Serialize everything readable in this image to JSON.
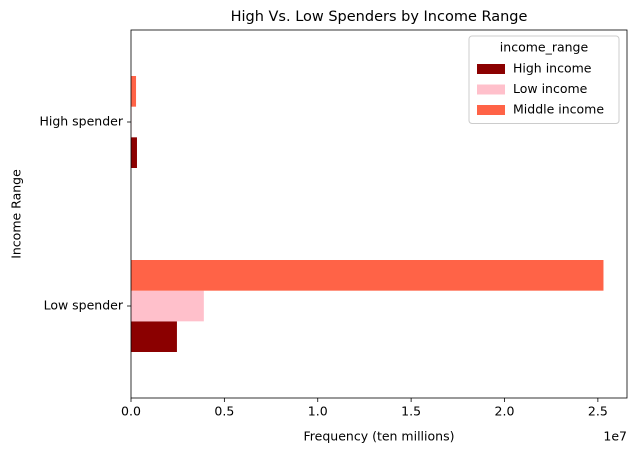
{
  "chart_data": {
    "type": "barh",
    "title": "High Vs. Low Spenders by Income Range",
    "x_label": "Frequency (ten millions)",
    "y_label": "Income Range",
    "x_offset_label": "1e7",
    "categories": [
      "Low spender",
      "High spender"
    ],
    "series": [
      {
        "name": "High income",
        "color": "#8b0000",
        "values": [
          2460000,
          320000
        ]
      },
      {
        "name": "Low income",
        "color": "#ffc0cb",
        "values": [
          3900000,
          30000
        ]
      },
      {
        "name": "Middle income",
        "color": "#ff6347",
        "values": [
          25300000,
          270000
        ]
      }
    ],
    "xlim": [
      0,
      26560000
    ],
    "xticks": [
      {
        "value": 0,
        "label": "0.0"
      },
      {
        "value": 5000000,
        "label": "0.5"
      },
      {
        "value": 10000000,
        "label": "1.0"
      },
      {
        "value": 15000000,
        "label": "1.5"
      },
      {
        "value": 20000000,
        "label": "2.0"
      },
      {
        "value": 25000000,
        "label": "2.5"
      }
    ],
    "legend_title": "income_range",
    "legend_position": "upper right",
    "grid": false
  }
}
